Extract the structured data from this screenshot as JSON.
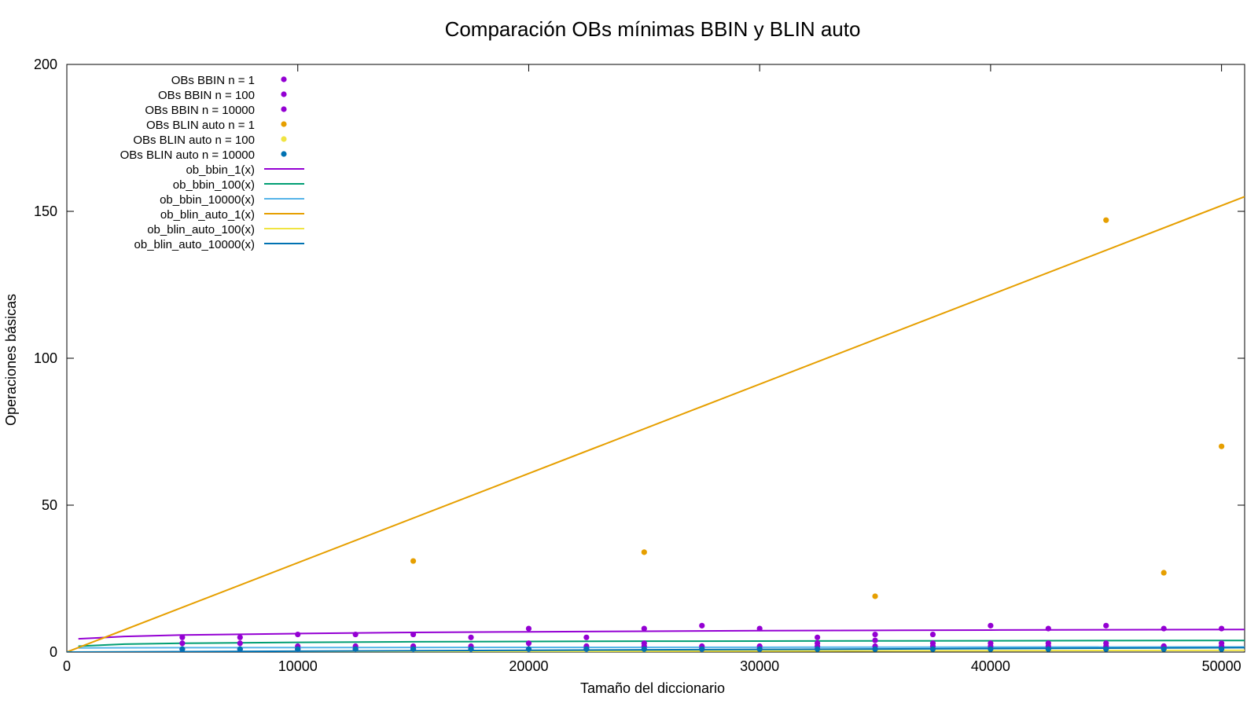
{
  "chart_data": {
    "type": "scatter",
    "title": "Comparación OBs mínimas BBIN y BLIN auto",
    "xlabel": "Tamaño del diccionario",
    "ylabel": "Operaciones básicas",
    "xlim": [
      0,
      51000
    ],
    "ylim": [
      0,
      200
    ],
    "xticks": [
      0,
      10000,
      20000,
      30000,
      40000,
      50000
    ],
    "yticks": [
      0,
      50,
      100,
      150,
      200
    ],
    "grid": false,
    "legend_position": "top-left",
    "point_series": [
      {
        "name": "OBs BBIN n = 1",
        "color": "#9400d3",
        "x": [
          5000,
          7500,
          10000,
          12500,
          15000,
          17500,
          20000,
          22500,
          25000,
          27500,
          30000,
          32500,
          35000,
          37500,
          40000,
          42500,
          45000,
          47500,
          50000
        ],
        "y": [
          5,
          5,
          6,
          6,
          6,
          5,
          8,
          5,
          8,
          9,
          8,
          5,
          6,
          6,
          9,
          8,
          9,
          8,
          8
        ]
      },
      {
        "name": "OBs BBIN n = 100",
        "color": "#9400d3",
        "x": [
          5000,
          7500,
          10000,
          12500,
          15000,
          17500,
          20000,
          22500,
          25000,
          27500,
          30000,
          32500,
          35000,
          37500,
          40000,
          42500,
          45000,
          47500,
          50000
        ],
        "y": [
          3,
          3,
          2,
          2,
          2,
          2,
          3,
          2,
          3,
          2,
          2,
          3,
          4,
          3,
          3,
          3,
          3,
          2,
          3
        ]
      },
      {
        "name": "OBs BBIN n = 10000",
        "color": "#9400d3",
        "x": [
          5000,
          7500,
          10000,
          12500,
          15000,
          17500,
          20000,
          22500,
          25000,
          27500,
          30000,
          32500,
          35000,
          37500,
          40000,
          42500,
          45000,
          47500,
          50000
        ],
        "y": [
          1,
          1,
          1,
          1,
          1,
          1,
          1,
          1,
          2,
          1,
          1,
          2,
          2,
          2,
          2,
          2,
          2,
          2,
          2
        ]
      },
      {
        "name": "OBs BLIN auto n = 1",
        "color": "#e69f00",
        "x": [
          15000,
          25000,
          35000,
          45000,
          47500,
          50000
        ],
        "y": [
          31,
          34,
          19,
          147,
          27,
          70
        ]
      },
      {
        "name": "OBs BLIN auto n = 100",
        "color": "#f0e442",
        "x": [],
        "y": []
      },
      {
        "name": "OBs BLIN auto n = 10000",
        "color": "#0072b2",
        "x": [
          5000,
          7500,
          10000,
          12500,
          15000,
          17500,
          20000,
          22500,
          25000,
          27500,
          30000,
          32500,
          35000,
          37500,
          40000,
          42500,
          45000,
          47500,
          50000
        ],
        "y": [
          1,
          1,
          1,
          1,
          1,
          1,
          1,
          1,
          1,
          1,
          1,
          1,
          1,
          1,
          1,
          1,
          1,
          1,
          1
        ]
      }
    ],
    "line_series": [
      {
        "name": "ob_bbin_1(x)",
        "color": "#9400d3",
        "x": [
          500,
          2500,
          5000,
          10000,
          15000,
          20000,
          25000,
          30000,
          35000,
          40000,
          45000,
          51000
        ],
        "y": [
          4.5,
          5.3,
          5.8,
          6.3,
          6.7,
          6.9,
          7.1,
          7.3,
          7.4,
          7.5,
          7.6,
          7.7
        ]
      },
      {
        "name": "ob_bbin_100(x)",
        "color": "#009e73",
        "x": [
          500,
          2500,
          5000,
          10000,
          15000,
          20000,
          25000,
          30000,
          35000,
          40000,
          45000,
          51000
        ],
        "y": [
          2.0,
          2.7,
          3.0,
          3.3,
          3.5,
          3.6,
          3.7,
          3.75,
          3.8,
          3.85,
          3.9,
          3.95
        ]
      },
      {
        "name": "ob_bbin_10000(x)",
        "color": "#56b4e9",
        "x": [
          500,
          5000,
          10000,
          20000,
          30000,
          40000,
          51000
        ],
        "y": [
          1.4,
          1.5,
          1.55,
          1.6,
          1.65,
          1.7,
          1.75
        ]
      },
      {
        "name": "ob_blin_auto_1(x)",
        "color": "#e69f00",
        "x": [
          0,
          51000
        ],
        "y": [
          0,
          155
        ]
      },
      {
        "name": "ob_blin_auto_100(x)",
        "color": "#f0e442",
        "x": [
          0,
          51000
        ],
        "y": [
          0,
          0.6
        ]
      },
      {
        "name": "ob_blin_auto_10000(x)",
        "color": "#0072b2",
        "x": [
          0,
          10000,
          20000,
          30000,
          40000,
          51000
        ],
        "y": [
          0,
          0.3,
          0.6,
          0.9,
          1.2,
          1.5
        ]
      }
    ]
  }
}
